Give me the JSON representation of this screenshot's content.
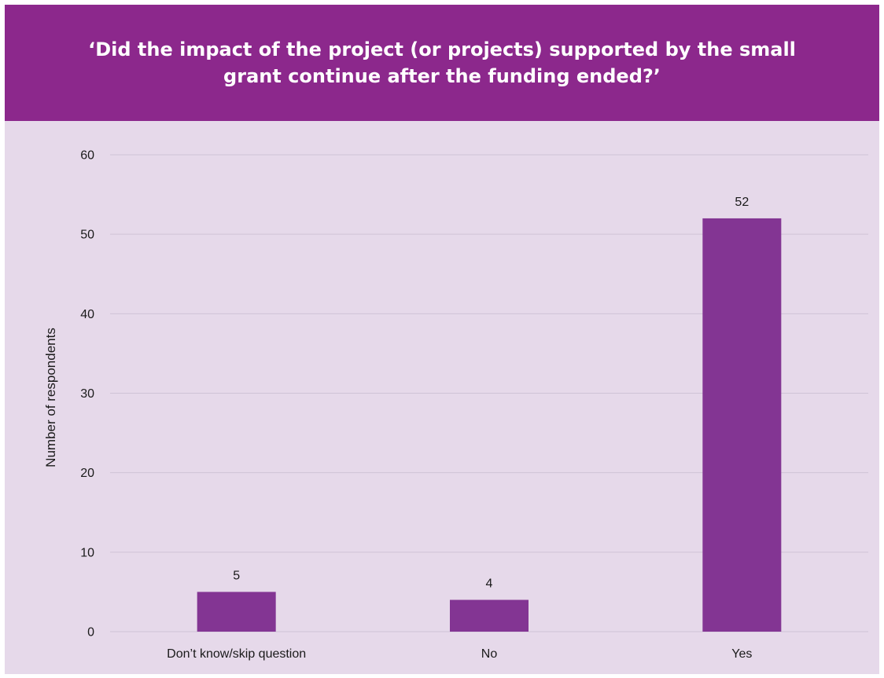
{
  "chart_data": {
    "type": "bar",
    "title": "‘Did the impact of the project (or projects) supported by the small grant continue after the funding ended?’",
    "categories": [
      "Don’t know/skip question",
      "No",
      "Yes"
    ],
    "values": [
      5,
      4,
      52
    ],
    "xlabel": "",
    "ylabel": "Number of respondents",
    "ylim": [
      0,
      60
    ],
    "yticks": [
      0,
      10,
      20,
      30,
      40,
      50,
      60
    ],
    "grid": true,
    "legend": "none",
    "data_labels": true,
    "colors": {
      "bar": "#833593",
      "header": "#8c288c",
      "background": "#e6d9ea",
      "grid": "#cfc3d6"
    }
  }
}
